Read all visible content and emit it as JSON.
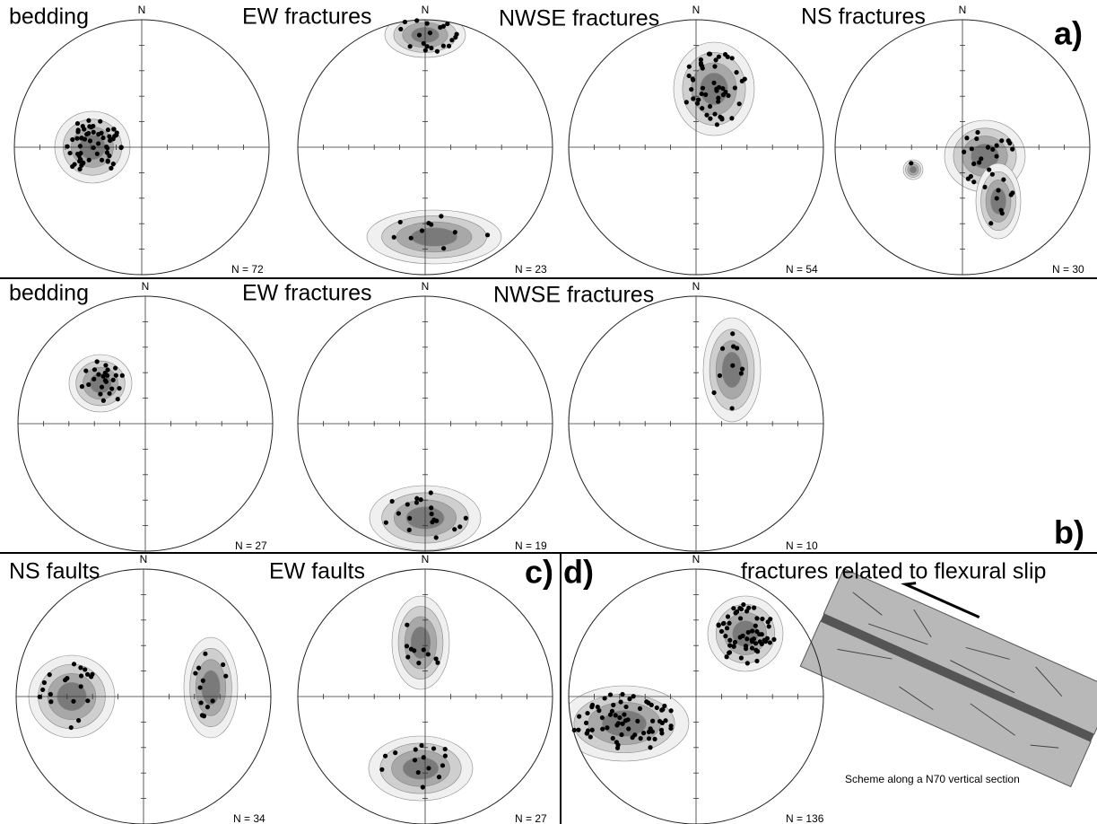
{
  "rows": [
    {
      "label": "a)",
      "nets": [
        {
          "title": "bedding",
          "north": "N",
          "count": "N = 72"
        },
        {
          "title": "EW fractures",
          "north": "N",
          "count": "N = 23"
        },
        {
          "title": "NWSE fractures",
          "north": "N",
          "count": "N = 54"
        },
        {
          "title": "NS fractures",
          "north": "N",
          "count": "N = 30"
        }
      ]
    },
    {
      "label": "b)",
      "nets": [
        {
          "title": "bedding",
          "north": "N",
          "count": "N = 27"
        },
        {
          "title": "EW fractures",
          "north": "N",
          "count": "N = 19"
        },
        {
          "title": "NWSE fractures",
          "north": "N",
          "count": "N = 10"
        }
      ]
    },
    {
      "label": "c)",
      "nets": [
        {
          "title": "NS faults",
          "north": "N",
          "count": "N = 34"
        },
        {
          "title": "EW faults",
          "north": "N",
          "count": "N = 27"
        }
      ]
    },
    {
      "label": "d)",
      "nets": [
        {
          "title": "fractures related to flexural slip",
          "north": "N",
          "count": "N = 136"
        }
      ]
    }
  ],
  "scheme_caption": "Scheme along a N70 vertical section"
}
